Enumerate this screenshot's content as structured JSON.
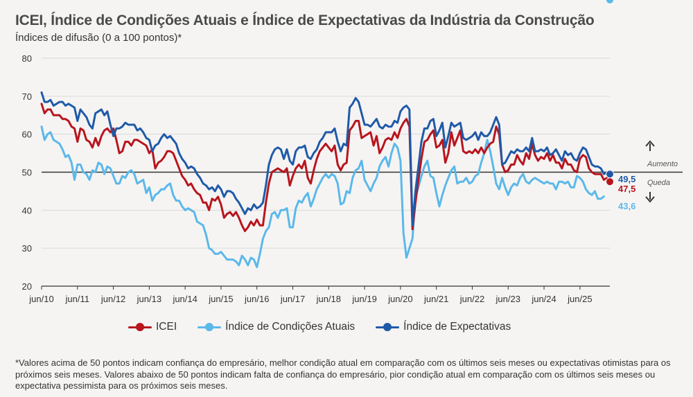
{
  "chart_data": {
    "type": "line",
    "title": "ICEI, Índice de Condições Atuais e Índice de Expectativas da Indústria da Construção",
    "subtitle": "Índices de difusão (0 a 100 pontos)*",
    "ylim": [
      20,
      80
    ],
    "yticks": [
      "80",
      "70",
      "60",
      "50",
      "40",
      "30",
      "20"
    ],
    "xticks": [
      "jun/10",
      "jun/11",
      "jun/12",
      "jun/13",
      "jun/14",
      "jun/15",
      "jun/16",
      "jun/17",
      "jun/18",
      "jun/19",
      "jun/20",
      "jun/21",
      "jun/22",
      "jun/23",
      "jun/24",
      "jun/25"
    ],
    "reference_line": 50,
    "annotations": {
      "up": "Aumento",
      "down": "Queda"
    },
    "series": [
      {
        "name": "ICEI",
        "color": "#b8151d",
        "last_label": "47,5",
        "values": [
          68.0,
          65.5,
          66.5,
          66.5,
          65.0,
          65.0,
          65.0,
          64.0,
          64.0,
          63.5,
          62.0,
          61.5,
          58.0,
          61.5,
          61.0,
          58.5,
          58.0,
          56.5,
          59.0,
          57.0,
          59.5,
          61.0,
          61.5,
          60.5,
          61.5,
          58.5,
          55.0,
          55.5,
          58.0,
          58.0,
          57.0,
          58.5,
          58.5,
          58.0,
          57.5,
          57.0,
          55.0,
          56.0,
          51.0,
          52.5,
          53.0,
          54.0,
          55.5,
          55.5,
          55.0,
          53.0,
          51.0,
          49.0,
          48.0,
          46.5,
          47.0,
          45.5,
          44.5,
          44.0,
          42.0,
          42.0,
          40.0,
          43.0,
          42.5,
          43.5,
          41.5,
          38.0,
          39.0,
          39.5,
          38.5,
          39.5,
          38.0,
          36.0,
          34.5,
          35.5,
          37.0,
          36.0,
          37.5,
          36.0,
          36.0,
          42.0,
          47.0,
          50.0,
          50.5,
          51.0,
          50.5,
          50.0,
          51.0,
          46.5,
          49.0,
          51.0,
          52.0,
          51.0,
          53.0,
          48.5,
          47.0,
          50.5,
          53.5,
          55.5,
          56.5,
          57.5,
          56.5,
          55.5,
          57.0,
          52.0,
          50.5,
          52.0,
          52.5,
          61.0,
          62.0,
          63.5,
          63.5,
          59.0,
          59.5,
          60.0,
          60.5,
          57.0,
          59.5,
          55.0,
          56.5,
          58.5,
          59.0,
          58.5,
          60.5,
          59.0,
          61.5,
          63.0,
          64.0,
          62.0,
          35.0,
          42.0,
          48.0,
          53.5,
          58.0,
          58.5,
          60.0,
          61.0,
          56.5,
          57.0,
          58.5,
          52.5,
          55.0,
          60.5,
          57.0,
          59.0,
          61.0,
          55.5,
          55.0,
          55.5,
          55.0,
          56.0,
          55.0,
          56.5,
          55.0,
          56.5,
          57.5,
          58.0,
          62.0,
          60.0,
          52.0,
          50.0,
          50.5,
          52.0,
          52.0,
          54.5,
          53.0,
          52.0,
          55.0,
          53.5,
          57.5,
          54.5,
          53.0,
          54.0,
          53.5,
          55.0,
          53.0,
          54.5,
          52.5,
          52.5,
          51.0,
          53.5,
          52.0,
          52.0,
          50.5,
          50.0,
          53.5,
          54.5,
          54.0,
          51.0,
          50.0,
          49.5,
          49.5,
          49.5,
          48.0,
          48.5,
          47.5
        ]
      },
      {
        "name": "Índice de Condições Atuais",
        "color": "#5bb8ea",
        "last_label": "43,6",
        "values": [
          62.0,
          58.5,
          60.0,
          60.5,
          58.5,
          58.0,
          57.5,
          56.0,
          54.0,
          54.5,
          52.5,
          48.0,
          52.0,
          52.0,
          50.0,
          49.5,
          48.0,
          50.5,
          50.0,
          52.5,
          52.0,
          49.5,
          51.5,
          51.0,
          49.0,
          47.0,
          47.0,
          49.0,
          48.5,
          50.0,
          50.5,
          49.5,
          47.0,
          47.5,
          48.0,
          44.5,
          46.0,
          42.5,
          44.0,
          44.5,
          45.5,
          45.5,
          46.5,
          47.0,
          44.0,
          42.5,
          42.5,
          41.0,
          40.0,
          40.5,
          40.0,
          39.5,
          37.0,
          36.5,
          36.0,
          33.5,
          30.0,
          29.5,
          28.5,
          28.5,
          29.0,
          28.0,
          27.0,
          27.0,
          27.0,
          26.5,
          25.5,
          28.0,
          27.0,
          25.5,
          27.5,
          27.0,
          25.0,
          28.5,
          32.5,
          34.5,
          35.5,
          39.0,
          39.5,
          38.0,
          40.0,
          40.0,
          40.5,
          35.5,
          35.5,
          40.5,
          42.5,
          42.0,
          43.5,
          44.5,
          41.0,
          43.0,
          45.5,
          47.0,
          48.5,
          49.5,
          48.5,
          49.5,
          49.0,
          47.0,
          41.5,
          42.0,
          45.0,
          44.5,
          48.5,
          50.5,
          51.0,
          53.0,
          48.0,
          46.5,
          45.0,
          47.0,
          48.5,
          51.5,
          53.0,
          54.0,
          51.5,
          55.0,
          57.5,
          56.5,
          53.0,
          34.0,
          27.5,
          30.0,
          32.5,
          43.5,
          46.0,
          49.0,
          51.5,
          53.0,
          49.0,
          48.5,
          44.5,
          41.0,
          44.0,
          46.5,
          48.5,
          50.5,
          51.5,
          47.0,
          47.5,
          47.5,
          48.5,
          47.0,
          47.5,
          49.0,
          49.5,
          52.5,
          55.0,
          58.5,
          55.5,
          51.5,
          47.0,
          45.5,
          48.5,
          46.0,
          44.0,
          46.0,
          47.0,
          46.5,
          48.5,
          49.5,
          47.5,
          47.0,
          48.0,
          48.5,
          48.0,
          47.5,
          47.0,
          47.5,
          47.0,
          47.0,
          45.5,
          47.5,
          47.5,
          47.0,
          47.5,
          46.0,
          46.0,
          49.0,
          48.5,
          47.5,
          45.5,
          44.5,
          44.0,
          45.0,
          43.0,
          43.0,
          43.6
        ]
      },
      {
        "name": "Índice de Expectativas",
        "color": "#1f5aa8",
        "last_label": "49,5",
        "values": [
          71.0,
          68.5,
          68.5,
          69.0,
          67.5,
          68.0,
          68.5,
          68.5,
          67.5,
          68.0,
          67.5,
          67.0,
          63.5,
          66.5,
          65.5,
          64.5,
          62.5,
          61.5,
          65.5,
          66.0,
          66.5,
          65.0,
          66.0,
          62.5,
          59.5,
          61.5,
          61.5,
          62.0,
          63.0,
          62.5,
          62.5,
          62.5,
          61.0,
          61.5,
          60.5,
          59.0,
          58.5,
          55.5,
          57.0,
          57.5,
          59.0,
          60.0,
          59.0,
          59.5,
          58.5,
          57.5,
          55.0,
          53.5,
          52.5,
          51.0,
          51.5,
          51.0,
          49.5,
          48.5,
          47.0,
          46.5,
          45.5,
          46.0,
          45.0,
          46.5,
          45.5,
          43.5,
          45.0,
          45.0,
          44.5,
          43.0,
          42.0,
          40.5,
          39.0,
          40.5,
          40.0,
          41.5,
          40.5,
          41.0,
          42.0,
          46.5,
          52.0,
          54.5,
          56.0,
          56.5,
          56.0,
          53.5,
          56.0,
          53.0,
          52.0,
          55.5,
          56.5,
          56.5,
          57.0,
          54.0,
          53.5,
          55.0,
          56.0,
          58.0,
          59.0,
          60.5,
          60.5,
          60.5,
          61.5,
          58.0,
          55.5,
          57.5,
          57.0,
          67.0,
          68.0,
          69.5,
          68.5,
          65.5,
          62.5,
          62.5,
          62.0,
          63.0,
          64.0,
          62.0,
          61.5,
          62.5,
          62.0,
          62.0,
          63.5,
          63.0,
          66.0,
          67.0,
          67.5,
          66.5,
          36.0,
          45.0,
          51.5,
          58.0,
          61.5,
          61.5,
          63.5,
          64.0,
          59.5,
          61.0,
          63.0,
          56.5,
          59.5,
          63.0,
          62.0,
          62.5,
          63.0,
          59.0,
          58.5,
          59.0,
          59.5,
          60.5,
          58.5,
          60.5,
          59.5,
          59.5,
          60.5,
          62.5,
          64.5,
          62.5,
          52.0,
          52.5,
          54.0,
          55.5,
          55.0,
          56.0,
          55.5,
          55.5,
          56.5,
          55.5,
          59.0,
          55.5,
          55.5,
          56.0,
          55.5,
          56.5,
          54.5,
          55.0,
          56.0,
          54.5,
          53.0,
          55.5,
          54.5,
          55.0,
          53.5,
          53.0,
          55.0,
          56.5,
          56.0,
          54.0,
          52.0,
          51.5,
          51.5,
          51.0,
          49.5,
          50.0,
          49.5
        ]
      }
    ]
  },
  "legend": [
    "ICEI",
    "Índice de Condições Atuais",
    "Índice de Expectativas"
  ],
  "footnote": "*Valores acima de 50 pontos indicam confiança do empresário, melhor condição atual em comparação com os últimos seis meses ou expectativas otimistas para os próximos seis meses. Valores abaixo de 50 pontos indicam falta de confiança do empresário, pior condição atual em comparação com os últimos seis meses ou expectativa pessimista para os próximos seis meses."
}
